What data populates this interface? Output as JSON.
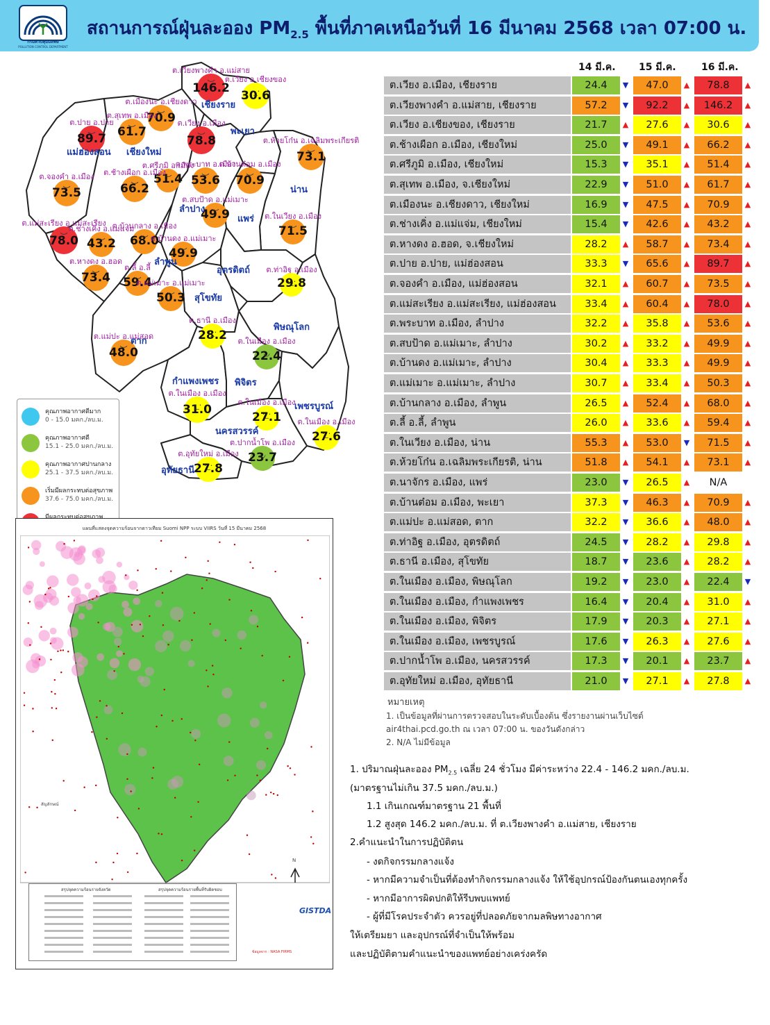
{
  "header": {
    "title_main": "สถานการณ์ฝุ่นละออง PM",
    "title_sub": "2.5",
    "title_rest": " พื้นที่ภาคเหนือวันที่ 16 มีนาคม 2568 เวลา 07:00 น.",
    "logo_text": "กรมควบคุมมลพิษ",
    "logo_text_en": "POLLUTION CONTROL DEPARTMENT"
  },
  "colors": {
    "very_good": "#3ec8f0",
    "good": "#8cc63f",
    "moderate": "#ffff00",
    "unhealthy_sensitive": "#f7941d",
    "unhealthy": "#ed3237",
    "header_bg": "#6fcfef",
    "label_grey": "#c4c4c4"
  },
  "legend": [
    {
      "title": "คุณภาพอากาศดีมาก",
      "range": "0 - 15.0 มคก./ลบ.ม.",
      "level": "very_good"
    },
    {
      "title": "คุณภาพอากาศดี",
      "range": "15.1 - 25.0 มคก./ลบ.ม.",
      "level": "good"
    },
    {
      "title": "คุณภาพอากาศปานกลาง",
      "range": "25.1 - 37.5 มคก./ลบ.ม.",
      "level": "moderate"
    },
    {
      "title": "เริ่มมีผลกระทบต่อสุขภาพ",
      "range": "37.6 - 75.0 มคก./ลบ.ม.",
      "level": "unhealthy_sensitive"
    },
    {
      "title": "มีผลกระทบต่อสุขภาพ",
      "range": "มากกว่า 75 มคก./ลบ.ม.",
      "level": "unhealthy"
    }
  ],
  "map": {
    "provinces": [
      "เชียงราย",
      "พะเยา",
      "น่าน",
      "แม่ฮ่องสอน",
      "เชียงใหม่",
      "ลำปาง",
      "แพร่",
      "ลำพูน",
      "อุตรดิตถ์",
      "สุโขทัย",
      "ตาก",
      "พิษณุโลก",
      "กำแพงเพชร",
      "พิจิตร",
      "เพชรบูรณ์",
      "นครสวรรค์",
      "อุทัยธานี"
    ],
    "sites": [
      {
        "label": "ต.เวียงพางคำ อ.แม่สาย",
        "value": "146.2",
        "level": "unhealthy"
      },
      {
        "label": "ต.เวียง อ.เชียงของ",
        "value": "30.6",
        "level": "moderate"
      },
      {
        "label": "ต.เมืองนะ อ.เชียงดาว",
        "value": "70.9",
        "level": "unhealthy_sensitive"
      },
      {
        "label": "ต.สุเทพ อ.เมือง",
        "value": "61.7",
        "level": "unhealthy_sensitive"
      },
      {
        "label": "ต.ปาย อ.ปาย",
        "value": "89.7",
        "level": "unhealthy"
      },
      {
        "label": "ต.เวียง อ.เมือง",
        "value": "78.8",
        "level": "unhealthy"
      },
      {
        "label": "ต.ห้วยโก๋น อ.เฉลิมพระเกียรติ",
        "value": "73.1",
        "level": "unhealthy_sensitive"
      },
      {
        "label": "ต.จองคำ อ.เมือง",
        "value": "73.5",
        "level": "unhealthy_sensitive"
      },
      {
        "label": "ต.ศรีภูมิ อ.เมือง",
        "value": "51.4",
        "level": "unhealthy_sensitive"
      },
      {
        "label": "ต.ช้างเผือก อ.เมือง",
        "value": "66.2",
        "level": "unhealthy_sensitive"
      },
      {
        "label": "ต.พระบาท อ.เมือง",
        "value": "53.6",
        "level": "unhealthy_sensitive"
      },
      {
        "label": "ต.บ้านต๋อม อ.เมือง",
        "value": "70.9",
        "level": "unhealthy_sensitive"
      },
      {
        "label": "ต.สบป้าด อ.แม่เมาะ",
        "value": "49.9",
        "level": "unhealthy_sensitive"
      },
      {
        "label": "ต.ในเวียง อ.เมือง",
        "value": "71.5",
        "level": "unhealthy_sensitive"
      },
      {
        "label": "ต.แม่สะเรียง อ.แม่สะเรียง",
        "value": "78.0",
        "level": "unhealthy"
      },
      {
        "label": "ต.ช่างเคิ่ง อ.แม่แจ่ม",
        "value": "43.2",
        "level": "unhealthy_sensitive"
      },
      {
        "label": "ต.บ้านกลาง อ.เมือง",
        "value": "68.0",
        "level": "unhealthy_sensitive"
      },
      {
        "label": "ต.บ้านดง อ.แม่เมาะ",
        "value": "49.9",
        "level": "unhealthy_sensitive"
      },
      {
        "label": "ต.หางดง อ.ฮอด",
        "value": "73.4",
        "level": "unhealthy_sensitive"
      },
      {
        "label": "ต.ลี้ อ.ลี้",
        "value": "59.4",
        "level": "unhealthy_sensitive"
      },
      {
        "label": "ต.แม่เมาะ อ.แม่เมาะ",
        "value": "50.3",
        "level": "unhealthy_sensitive"
      },
      {
        "label": "ต.ท่าอิฐ อ.เมือง",
        "value": "29.8",
        "level": "moderate"
      },
      {
        "label": "ต.ธานี อ.เมือง",
        "value": "28.2",
        "level": "moderate"
      },
      {
        "label": "ต.แม่ปะ อ.แม่สอด",
        "value": "48.0",
        "level": "unhealthy_sensitive"
      },
      {
        "label": "ต.ในเมือง อ.เมือง",
        "value": "22.4",
        "level": "good"
      },
      {
        "label": "ต.ในเมือง อ.เมือง",
        "value": "31.0",
        "level": "moderate"
      },
      {
        "label": "ต.ในเมือง อ.เมือง",
        "value": "27.1",
        "level": "moderate"
      },
      {
        "label": "ต.ในเมือง อ.เมือง",
        "value": "27.6",
        "level": "moderate"
      },
      {
        "label": "ต.อุทัยใหม่ อ.เมือง",
        "value": "27.8",
        "level": "moderate"
      },
      {
        "label": "ต.ปากน้ำโพ อ.เมือง",
        "value": "23.7",
        "level": "good"
      }
    ]
  },
  "satellite": {
    "title": "แผนที่แสดงจุดความร้อนจากดาวเทียม Suomi NPP ระบบ VIIRS วันที่ 15 มีนาคม 2568",
    "summary_left_title": "สรุปจุดความร้อนรายจังหวัด",
    "summary_right_title": "สรุปจุดความร้อนรายพื้นที่รับผิดชอบ",
    "legend_title": "สัญลักษณ์",
    "org": "GISTDA",
    "credit": "ข้อมูลจาก : NASA FIRMS",
    "north": "N"
  },
  "table": {
    "dates": [
      "14 มี.ค.",
      "15 มี.ค.",
      "16 มี.ค."
    ],
    "rows": [
      {
        "name": "ต.เวียง อ.เมือง, เชียงราย",
        "v": [
          "24.4",
          "47.0",
          "78.8"
        ],
        "t": [
          "down",
          "up",
          "up"
        ]
      },
      {
        "name": "ต.เวียงพางคำ อ.แม่สาย, เชียงราย",
        "v": [
          "57.2",
          "92.2",
          "146.2"
        ],
        "t": [
          "down",
          "up",
          "up"
        ]
      },
      {
        "name": "ต.เวียง อ.เชียงของ, เชียงราย",
        "v": [
          "21.7",
          "27.6",
          "30.6"
        ],
        "t": [
          "up",
          "up",
          "up"
        ]
      },
      {
        "name": "ต.ช้างเผือก อ.เมือง, เชียงใหม่",
        "v": [
          "25.0",
          "49.1",
          "66.2"
        ],
        "t": [
          "down",
          "up",
          "up"
        ]
      },
      {
        "name": "ต.ศรีภูมิ อ.เมือง, เชียงใหม่",
        "v": [
          "15.3",
          "35.1",
          "51.4"
        ],
        "t": [
          "down",
          "up",
          "up"
        ]
      },
      {
        "name": "ต.สุเทพ  อ.เมือง, จ.เชียงใหม่",
        "v": [
          "22.9",
          "51.0",
          "61.7"
        ],
        "t": [
          "down",
          "up",
          "up"
        ]
      },
      {
        "name": "ต.เมืองนะ อ.เชียงดาว, เชียงใหม่",
        "v": [
          "16.9",
          "47.5",
          "70.9"
        ],
        "t": [
          "down",
          "up",
          "up"
        ]
      },
      {
        "name": "ต.ช่างเคิ่ง อ.แม่แจ่ม, เชียงใหม่",
        "v": [
          "15.4",
          "42.6",
          "43.2"
        ],
        "t": [
          "down",
          "up",
          "up"
        ]
      },
      {
        "name": "ต.หางดง อ.ฮอด, จ.เชียงใหม่",
        "v": [
          "28.2",
          "58.7",
          "73.4"
        ],
        "t": [
          "up",
          "up",
          "up"
        ]
      },
      {
        "name": "ต.ปาย อ.ปาย, แม่ฮ่องสอน",
        "v": [
          "33.3",
          "65.6",
          "89.7"
        ],
        "t": [
          "down",
          "up",
          "up"
        ]
      },
      {
        "name": "ต.จองคำ อ.เมือง, แม่ฮ่องสอน",
        "v": [
          "32.1",
          "60.7",
          "73.5"
        ],
        "t": [
          "up",
          "up",
          "up"
        ]
      },
      {
        "name": "ต.แม่สะเรียง อ.แม่สะเรียง, แม่ฮ่องสอน",
        "v": [
          "33.4",
          "60.4",
          "78.0"
        ],
        "t": [
          "up",
          "up",
          "up"
        ]
      },
      {
        "name": "ต.พระบาท อ.เมือง, ลำปาง",
        "v": [
          "32.2",
          "35.8",
          "53.6"
        ],
        "t": [
          "up",
          "up",
          "up"
        ]
      },
      {
        "name": "ต.สบป้าด อ.แม่เมาะ, ลำปาง",
        "v": [
          "30.2",
          "33.2",
          "49.9"
        ],
        "t": [
          "up",
          "up",
          "up"
        ]
      },
      {
        "name": "ต.บ้านดง อ.แม่เมาะ, ลำปาง",
        "v": [
          "30.4",
          "33.3",
          "49.9"
        ],
        "t": [
          "up",
          "up",
          "up"
        ]
      },
      {
        "name": "ต.แม่เมาะ อ.แม่เมาะ, ลำปาง",
        "v": [
          "30.7",
          "33.4",
          "50.3"
        ],
        "t": [
          "up",
          "up",
          "up"
        ]
      },
      {
        "name": "ต.บ้านกลาง อ.เมือง, ลำพูน",
        "v": [
          "26.5",
          "52.4",
          "68.0"
        ],
        "t": [
          "up",
          "up",
          "up"
        ]
      },
      {
        "name": "ต.ลี้ อ.ลี้, ลำพูน",
        "v": [
          "26.0",
          "33.6",
          "59.4"
        ],
        "t": [
          "up",
          "up",
          "up"
        ]
      },
      {
        "name": "ต.ในเวียง อ.เมือง, น่าน",
        "v": [
          "55.3",
          "53.0",
          "71.5"
        ],
        "t": [
          "up",
          "down",
          "up"
        ]
      },
      {
        "name": "ต.ห้วยโก๋น อ.เฉลิมพระเกียรติ, น่าน",
        "v": [
          "51.8",
          "54.1",
          "73.1"
        ],
        "t": [
          "up",
          "up",
          "up"
        ]
      },
      {
        "name": "ต.นาจักร อ.เมือง, แพร่",
        "v": [
          "23.0",
          "26.5",
          "N/A"
        ],
        "t": [
          "down",
          "up",
          ""
        ]
      },
      {
        "name": "ต.บ้านต๋อม อ.เมือง, พะเยา",
        "v": [
          "37.3",
          "46.3",
          "70.9"
        ],
        "t": [
          "down",
          "up",
          "up"
        ]
      },
      {
        "name": "ต.แม่ปะ อ.แม่สอด, ตาก",
        "v": [
          "32.2",
          "36.6",
          "48.0"
        ],
        "t": [
          "down",
          "up",
          "up"
        ]
      },
      {
        "name": "ต.ท่าอิฐ อ.เมือง, อุตรดิตถ์",
        "v": [
          "24.5",
          "28.2",
          "29.8"
        ],
        "t": [
          "down",
          "up",
          "up"
        ]
      },
      {
        "name": "ต.ธานี อ.เมือง, สุโขทัย",
        "v": [
          "18.7",
          "23.6",
          "28.2"
        ],
        "t": [
          "down",
          "up",
          "up"
        ]
      },
      {
        "name": "ต.ในเมือง อ.เมือง, พิษณุโลก",
        "v": [
          "19.2",
          "23.0",
          "22.4"
        ],
        "t": [
          "down",
          "up",
          "down"
        ]
      },
      {
        "name": "ต.ในเมือง อ.เมือง, กำแพงเพชร",
        "v": [
          "16.4",
          "20.4",
          "31.0"
        ],
        "t": [
          "down",
          "up",
          "up"
        ]
      },
      {
        "name": "ต.ในเมือง อ.เมือง, พิจิตร",
        "v": [
          "17.9",
          "20.3",
          "27.1"
        ],
        "t": [
          "down",
          "up",
          "up"
        ]
      },
      {
        "name": "ต.ในเมือง อ.เมือง, เพชรบูรณ์",
        "v": [
          "17.6",
          "26.3",
          "27.6"
        ],
        "t": [
          "down",
          "up",
          "up"
        ]
      },
      {
        "name": "ต.ปากน้ำโพ อ.เมือง, นครสวรรค์",
        "v": [
          "17.3",
          "20.1",
          "23.7"
        ],
        "t": [
          "down",
          "up",
          "up"
        ]
      },
      {
        "name": "ต.อุทัยใหม่ อ.เมือง, อุทัยธานี",
        "v": [
          "21.0",
          "27.1",
          "27.8"
        ],
        "t": [
          "down",
          "up",
          "up"
        ]
      }
    ]
  },
  "notes": {
    "title": "หมายเหตุ",
    "n1a": "1.  เป็นข้อมูลที่ผ่านการตรวจสอบในระดับเบื้องต้น  ซึ่งรายงานผ่านเว็บไซต์",
    "n1b": "air4thai.pcd.go.th  ณ  เวลา 07:00  น.  ของวันดังกล่าว",
    "n2": "2.  N/A  ไม่มีข้อมูล"
  },
  "summary": {
    "l1": "1.  ปริมาณฝุ่นละออง PM",
    "l1sub": "2.5",
    "l1b": " เฉลี่ย 24 ชั่วโมง มีค่าระหว่าง 22.4 - 146.2 มคก./ลบ.ม.",
    "l2": "(มาตรฐานไม่เกิน 37.5 มคก./ลบ.ม.)",
    "l3": "1.1 เกินเกณฑ์มาตรฐาน 21 พื้นที่",
    "l4": "1.2 สูงสุด 146.2 มคก./ลบ.ม. ที่ ต.เวียงพางคำ อ.แม่สาย, เชียงราย",
    "l5": "2.คำแนะนำในการปฏิบัติตน",
    "b1": "-   งดกิจกรรมกลางแจ้ง",
    "b2": "-   หากมีความจำเป็นที่ต้องทำกิจกรรมกลางแจ้ง ให้ใช้อุปกรณ์ป้องกันตนเองทุกครั้ง",
    "b3": "-   หากมีอาการผิดปกติให้รีบพบแพทย์",
    "b4": "-   ผู้ที่มีโรคประจำตัว ควรอยู่ที่ปลอดภัยจากมลพิษทางอากาศ",
    "l6": "ให้เตรียมยา  และอุปกรณ์ที่จำเป็นให้พร้อม",
    "l7": "และปฏิบัติตามคำแนะนำของแพทย์อย่างเคร่งครัด"
  }
}
